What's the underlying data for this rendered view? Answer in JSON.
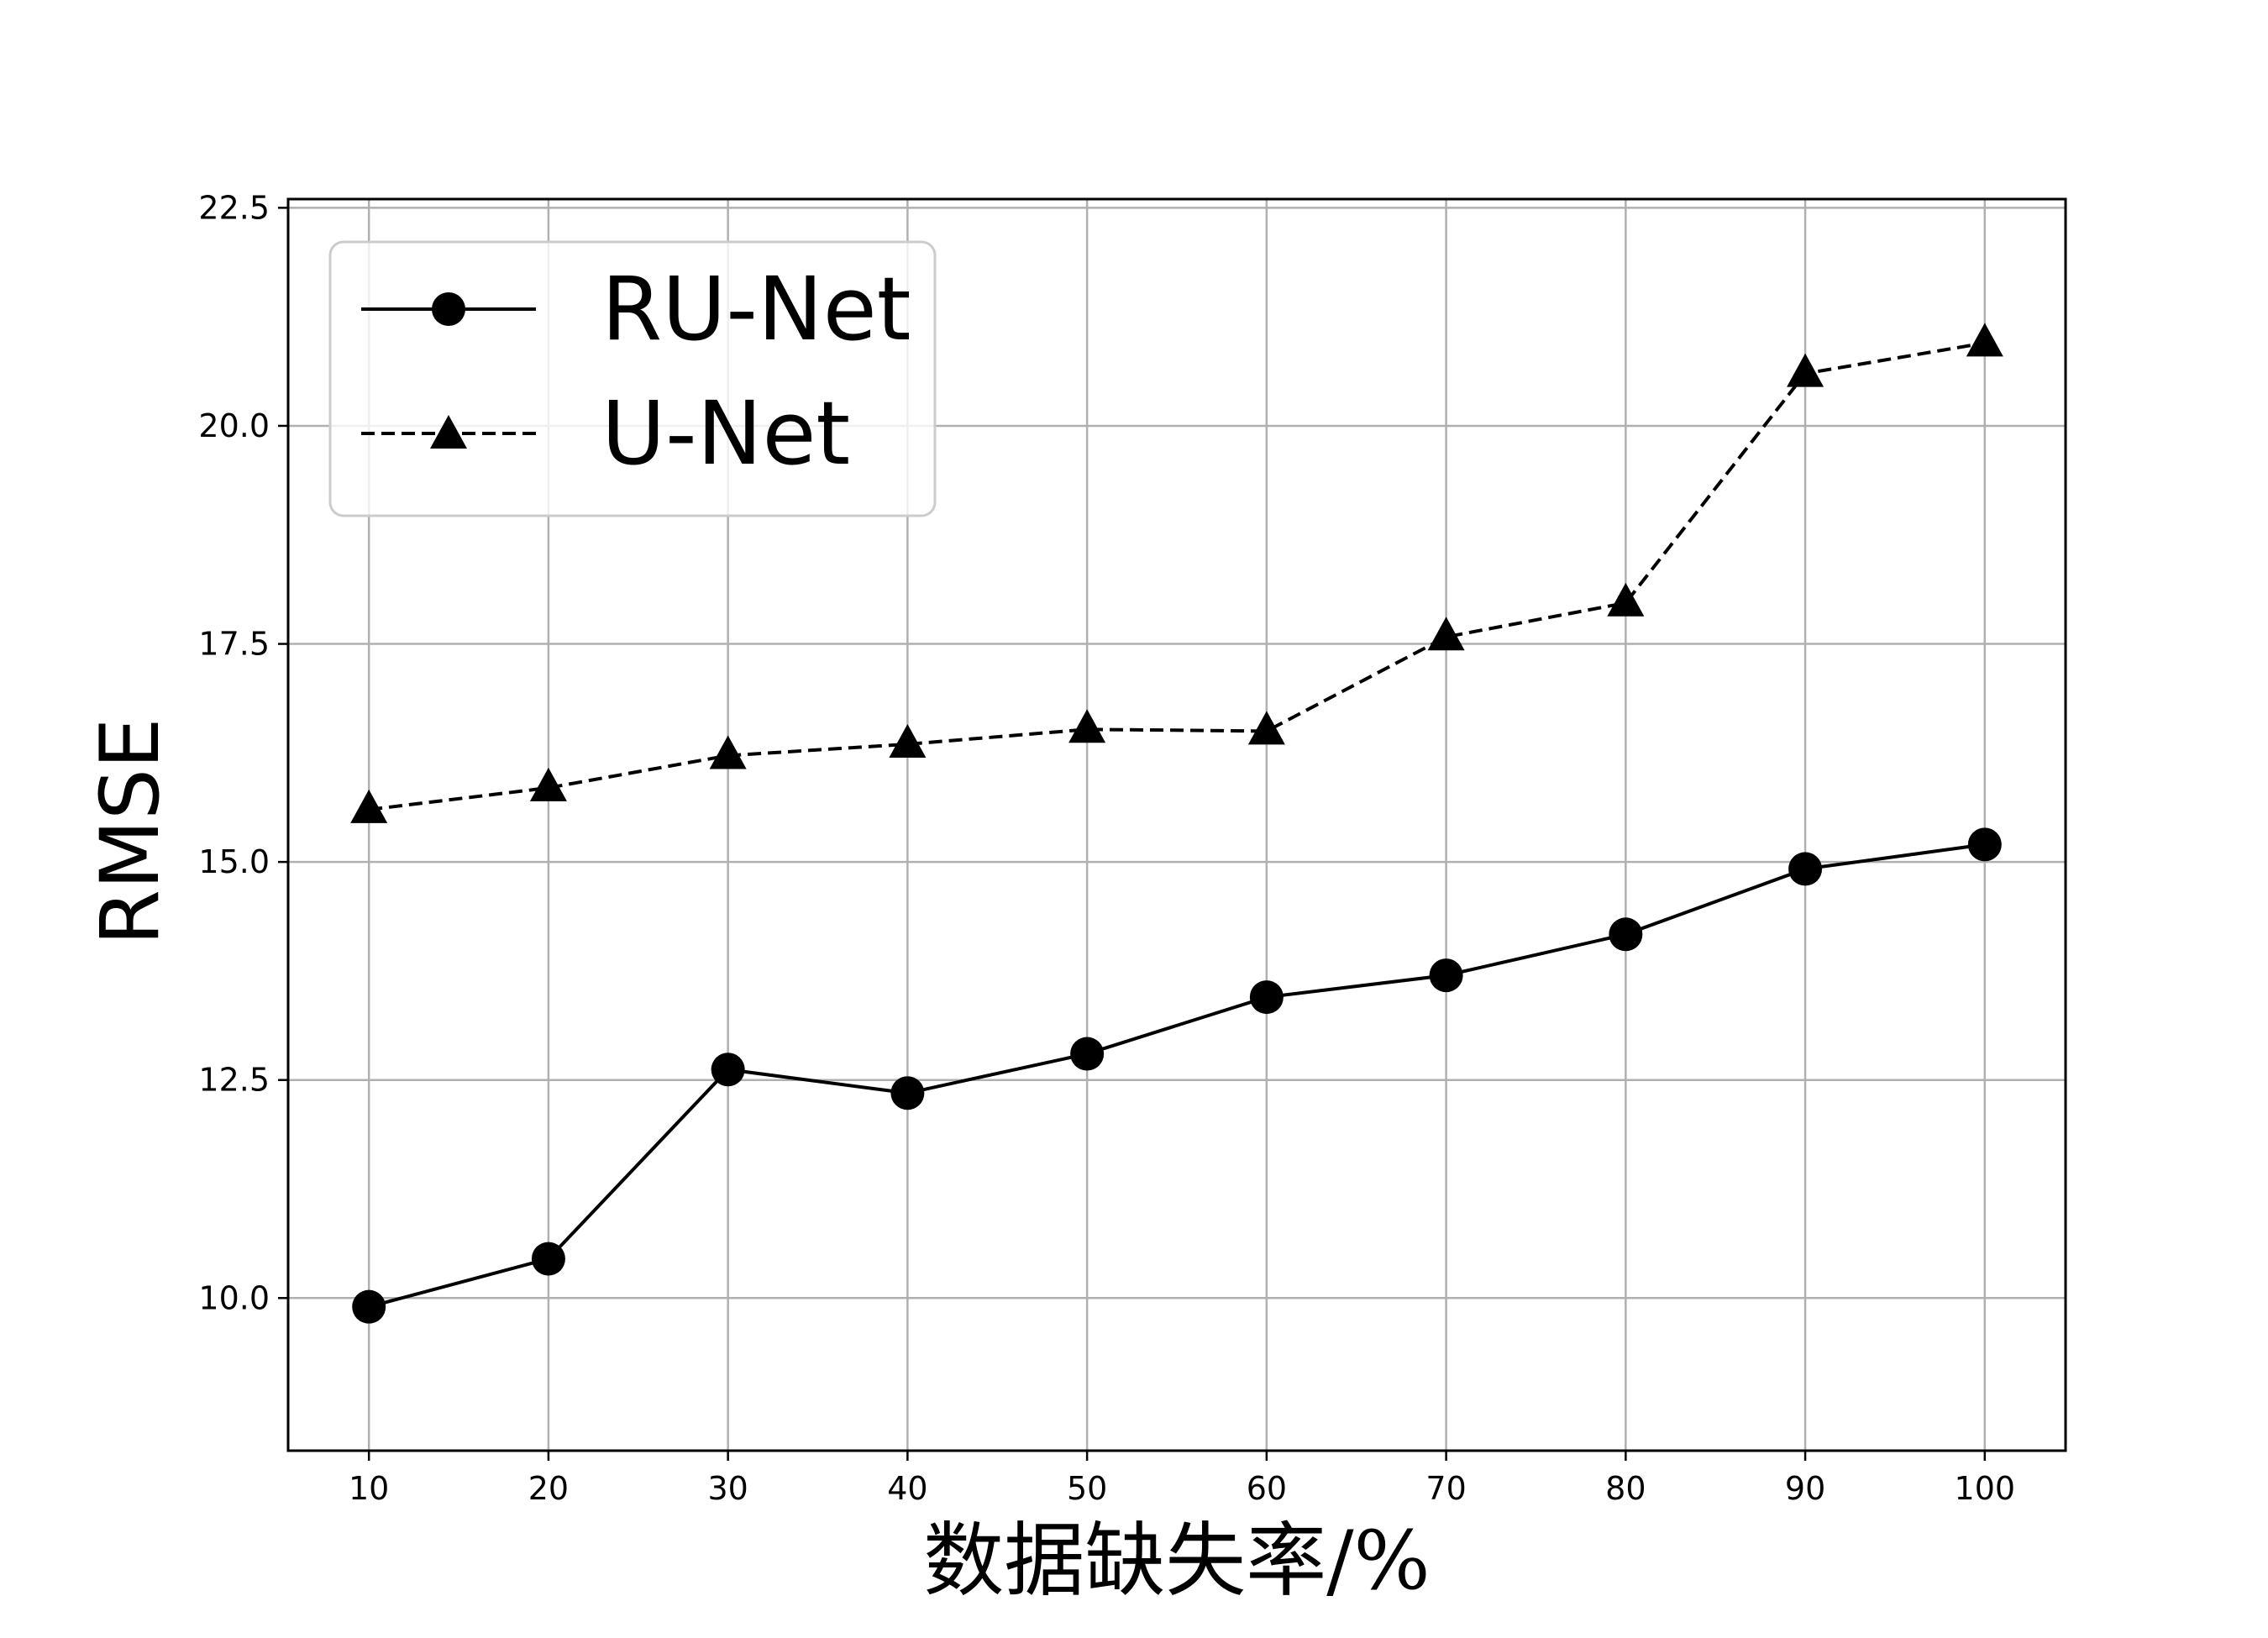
{
  "chart_data": {
    "type": "line",
    "title": "",
    "xlabel": "数据缺失率/%",
    "ylabel": "RMSE",
    "x": [
      10,
      20,
      30,
      40,
      50,
      60,
      70,
      80,
      90,
      100
    ],
    "xlim": [
      5.5,
      104.5
    ],
    "ylim": [
      8.25,
      22.6
    ],
    "xticks": [
      10,
      20,
      30,
      40,
      50,
      60,
      70,
      80,
      90,
      100
    ],
    "yticks": [
      10.0,
      12.5,
      15.0,
      17.5,
      20.0,
      22.5
    ],
    "x_tick_labels": [
      "10",
      "20",
      "30",
      "40",
      "50",
      "60",
      "70",
      "80",
      "90",
      "100"
    ],
    "y_tick_labels": [
      "10.0",
      "12.5",
      "15.0",
      "17.5",
      "20.0",
      "22.5"
    ],
    "grid": true,
    "legend_position": "top-left",
    "series": [
      {
        "name": "RU-Net",
        "values": [
          9.9,
          10.45,
          12.62,
          12.35,
          12.8,
          13.45,
          13.7,
          14.17,
          14.92,
          15.2
        ],
        "marker": "circle",
        "line_style": "solid",
        "color": "#000000"
      },
      {
        "name": "U-Net",
        "values": [
          15.6,
          15.85,
          16.22,
          16.35,
          16.52,
          16.5,
          17.58,
          17.97,
          20.6,
          20.95
        ],
        "marker": "triangle",
        "line_style": "dashed",
        "color": "#000000"
      }
    ]
  }
}
